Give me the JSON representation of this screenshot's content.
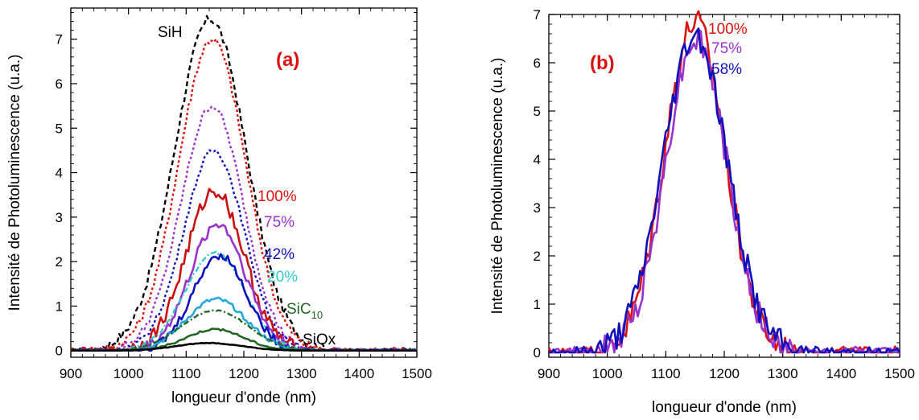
{
  "chart_data": [
    {
      "type": "line",
      "panel_label": "(a)",
      "xlabel": "longueur d'onde (nm)",
      "ylabel": "Intensité de Photoluminescence (u.a.)",
      "xlim": [
        900,
        1500
      ],
      "ylim": [
        -0.15,
        7.7
      ],
      "xticks": [
        900,
        1000,
        1100,
        1200,
        1300,
        1400,
        1500
      ],
      "yticks": [
        0,
        1,
        2,
        3,
        4,
        5,
        6,
        7
      ],
      "grid": false,
      "legend": "none",
      "series": [
        {
          "label": "SiH",
          "color": "#000000",
          "style": "dashed",
          "peak": 7.45,
          "center": 1142,
          "sigma": 62
        },
        {
          "label": "",
          "color": "#e01010",
          "style": "dotted",
          "peak": 7.0,
          "center": 1145,
          "sigma": 58
        },
        {
          "label": "",
          "color": "#9933cc",
          "style": "dotted",
          "peak": 5.5,
          "center": 1145,
          "sigma": 54
        },
        {
          "label": "",
          "color": "#1111bb",
          "style": "dotted",
          "peak": 4.5,
          "center": 1148,
          "sigma": 52
        },
        {
          "label": "100%",
          "color": "#cc1111",
          "style": "solid",
          "peak": 3.6,
          "center": 1150,
          "sigma": 50
        },
        {
          "label": "75%",
          "color": "#9933cc",
          "style": "solid",
          "peak": 2.85,
          "center": 1155,
          "sigma": 48
        },
        {
          "label": "",
          "color": "#33cccc",
          "style": "dashdot",
          "peak": 2.2,
          "center": 1150,
          "sigma": 52
        },
        {
          "label": "42%",
          "color": "#1111bb",
          "style": "solid",
          "peak": 2.15,
          "center": 1158,
          "sigma": 46
        },
        {
          "label": "20%",
          "color": "#22aadd",
          "style": "solid",
          "peak": 1.15,
          "center": 1152,
          "sigma": 52
        },
        {
          "label": "",
          "color": "#226622",
          "style": "dashdot",
          "peak": 0.9,
          "center": 1150,
          "sigma": 58
        },
        {
          "label": "SiC10",
          "color": "#226622",
          "style": "solid",
          "peak": 0.48,
          "center": 1150,
          "sigma": 50
        },
        {
          "label": "SiOx",
          "color": "#000000",
          "style": "solid",
          "peak": 0.17,
          "center": 1140,
          "sigma": 55
        }
      ],
      "annotations": [
        {
          "text": "SiH",
          "color": "#000000"
        },
        {
          "text": "100%",
          "color": "#dd1111"
        },
        {
          "text": "75%",
          "color": "#9933cc"
        },
        {
          "text": "42%",
          "color": "#1111bb"
        },
        {
          "text": "20%",
          "color": "#33cccc"
        },
        {
          "text": "SiC",
          "sub": "10",
          "color": "#226622"
        },
        {
          "text": "SiOx",
          "color": "#000000"
        }
      ]
    },
    {
      "type": "line",
      "panel_label": "(b)",
      "xlabel": "longueur d'onde (nm)",
      "ylabel": "Intensité de Photoluminescence (u.a.)",
      "xlim": [
        900,
        1500
      ],
      "ylim": [
        -0.1,
        7.0
      ],
      "xticks": [
        900,
        1000,
        1100,
        1200,
        1300,
        1400,
        1500
      ],
      "yticks": [
        0,
        1,
        2,
        3,
        4,
        5,
        6,
        7
      ],
      "grid": false,
      "legend": "none",
      "series": [
        {
          "label": "100%",
          "color": "#dd1111",
          "style": "solid",
          "peak": 6.85,
          "center": 1150,
          "sigma": 52
        },
        {
          "label": "75%",
          "color": "#9933cc",
          "style": "solid",
          "peak": 6.5,
          "center": 1152,
          "sigma": 52
        },
        {
          "label": "58%",
          "color": "#1111bb",
          "style": "solid",
          "peak": 6.6,
          "center": 1150,
          "sigma": 55
        }
      ],
      "annotations": [
        {
          "text": "100%",
          "color": "#dd1111"
        },
        {
          "text": "75%",
          "color": "#9933cc"
        },
        {
          "text": "58%",
          "color": "#1111bb"
        }
      ]
    }
  ]
}
